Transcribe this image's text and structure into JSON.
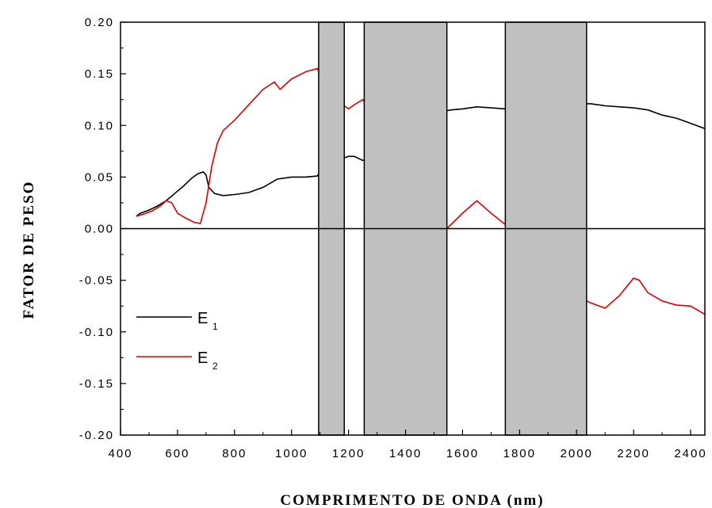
{
  "chart_data": {
    "type": "line",
    "title": "",
    "xlabel": "COMPRIMENTO DE ONDA (nm)",
    "ylabel": "FATOR DE PESO",
    "xlim": [
      400,
      2450
    ],
    "ylim": [
      -0.2,
      0.2
    ],
    "xticks": [
      400,
      600,
      800,
      1000,
      1200,
      1400,
      1600,
      1800,
      2000,
      2200,
      2400
    ],
    "yticks": [
      -0.2,
      -0.15,
      -0.1,
      -0.05,
      0.0,
      0.05,
      0.1,
      0.15,
      0.2
    ],
    "xtick_labels": [
      "400",
      "600",
      "800",
      "1000",
      "1200",
      "1400",
      "1600",
      "1800",
      "2000",
      "2200",
      "2400"
    ],
    "ytick_labels": [
      "-0.20",
      "-0.15",
      "-0.10",
      "-0.05",
      "0.00",
      "0.05",
      "0.10",
      "0.15",
      "0.20"
    ],
    "grid": false,
    "legend": "left-middle",
    "masked_bands": [
      [
        1095,
        1185
      ],
      [
        1255,
        1545
      ],
      [
        1750,
        2035
      ]
    ],
    "band_color": "#c0c0c0",
    "series": [
      {
        "name": "E",
        "subscript": "1",
        "color": "#000000",
        "x": [
          455,
          470,
          500,
          530,
          560,
          590,
          620,
          650,
          670,
          690,
          700,
          710,
          730,
          760,
          800,
          850,
          900,
          950,
          1000,
          1050,
          1090,
          1100,
          1120,
          1150,
          1180,
          1200,
          1220,
          1250,
          1540,
          1560,
          1600,
          1650,
          1700,
          1750,
          2035,
          2050,
          2100,
          2150,
          2200,
          2250,
          2300,
          2350,
          2400,
          2450
        ],
        "y": [
          0.012,
          0.015,
          0.018,
          0.022,
          0.027,
          0.034,
          0.041,
          0.049,
          0.053,
          0.055,
          0.052,
          0.04,
          0.034,
          0.032,
          0.033,
          0.035,
          0.04,
          0.048,
          0.05,
          0.05,
          0.051,
          0.055,
          0.06,
          0.064,
          0.068,
          0.07,
          0.07,
          0.066,
          0.114,
          0.115,
          0.116,
          0.118,
          0.117,
          0.116,
          0.121,
          0.121,
          0.119,
          0.118,
          0.117,
          0.115,
          0.11,
          0.107,
          0.102,
          0.097
        ]
      },
      {
        "name": "E",
        "subscript": "2",
        "color": "#e00000",
        "x": [
          455,
          480,
          510,
          540,
          560,
          580,
          600,
          630,
          660,
          680,
          700,
          720,
          740,
          760,
          800,
          850,
          900,
          940,
          960,
          1000,
          1050,
          1090,
          1100,
          1120,
          1150,
          1180,
          1200,
          1220,
          1250,
          1545,
          1600,
          1650,
          1700,
          1750,
          2035,
          2050,
          2100,
          2150,
          2200,
          2220,
          2250,
          2300,
          2350,
          2400,
          2450
        ],
        "y": [
          0.012,
          0.014,
          0.017,
          0.022,
          0.027,
          0.025,
          0.015,
          0.01,
          0.006,
          0.005,
          0.025,
          0.06,
          0.083,
          0.095,
          0.105,
          0.12,
          0.135,
          0.142,
          0.135,
          0.145,
          0.152,
          0.155,
          0.15,
          0.14,
          0.13,
          0.12,
          0.116,
          0.12,
          0.125,
          0.0,
          0.015,
          0.027,
          0.015,
          0.004,
          -0.07,
          -0.072,
          -0.077,
          -0.065,
          -0.048,
          -0.05,
          -0.062,
          -0.07,
          -0.074,
          -0.075,
          -0.083
        ]
      }
    ]
  }
}
